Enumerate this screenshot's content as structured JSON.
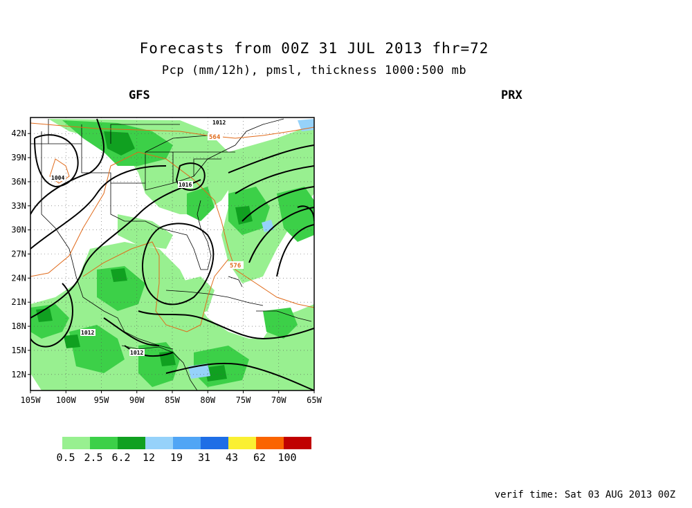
{
  "title": "Forecasts from 00Z 31 JUL 2013  fhr=72",
  "subtitle": "Pcp (mm/12h), pmsl, thickness 1000:500 mb",
  "model": "GFS",
  "region": "PRX",
  "verif_time": "verif time: Sat 03 AUG 2013 00Z",
  "map": {
    "lat_labels": [
      "42N",
      "39N",
      "36N",
      "33N",
      "30N",
      "27N",
      "24N",
      "21N",
      "18N",
      "15N",
      "12N"
    ],
    "lon_labels": [
      "105W",
      "100W",
      "95W",
      "90W",
      "85W",
      "80W",
      "75W",
      "70W",
      "65W"
    ],
    "lat_values": [
      42,
      39,
      36,
      33,
      30,
      27,
      24,
      21,
      18,
      15,
      12
    ],
    "lon_values": [
      -105,
      -100,
      -95,
      -90,
      -85,
      -80,
      -75,
      -70,
      -65
    ],
    "lat_range": [
      10,
      44
    ],
    "lon_range": [
      -105,
      -65
    ],
    "isobar_labels": [
      "1012",
      "1004",
      "1016",
      "1012",
      "1012"
    ],
    "thickness_labels": [
      "564",
      "576"
    ],
    "colors": {
      "isobar": "#000000",
      "thickness": "#e06a1a",
      "coast": "#000000",
      "grid": "#555555"
    }
  },
  "legend": {
    "values": [
      "0.5",
      "2.5",
      "6.2",
      "12",
      "19",
      "31",
      "43",
      "62",
      "100"
    ],
    "colors": [
      "#98f090",
      "#3cd048",
      "#10a020",
      "#96d2fa",
      "#50a5f5",
      "#1e6ee6",
      "#faf032",
      "#fa6400",
      "#c00000"
    ]
  }
}
